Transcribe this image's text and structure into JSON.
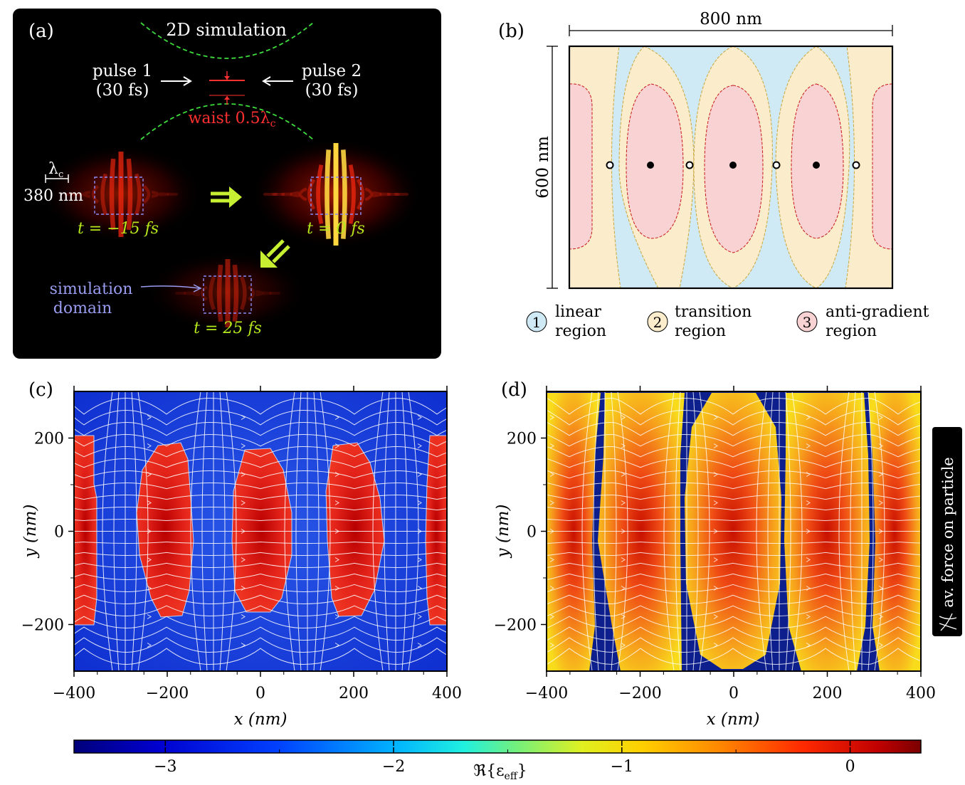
{
  "panels": {
    "a": {
      "tag": "(a)",
      "sim_title": "2D simulation",
      "pulse1": [
        "pulse 1",
        "(30 fs)"
      ],
      "pulse2": [
        "pulse 2",
        "(30 fs)"
      ],
      "waist": "waist 0.5λ",
      "waist_sub": "c",
      "lambda": "λ",
      "lambda_sub": "c",
      "lambda_value": "380 nm",
      "times": [
        "t = −15 fs",
        "t = 0 fs",
        "t = 25 fs"
      ],
      "domain_label": [
        "simulation",
        "domain"
      ]
    },
    "b": {
      "tag": "(b)",
      "width_label": "800 nm",
      "height_label": "600 nm",
      "legend": [
        {
          "num": "1",
          "lines": [
            "linear",
            "region"
          ],
          "color": "#cfe9f5"
        },
        {
          "num": "2",
          "lines": [
            "transition",
            "region"
          ],
          "color": "#fbeccb"
        },
        {
          "num": "3",
          "lines": [
            "anti-gradient",
            "region"
          ],
          "color": "#f9d3d3"
        }
      ]
    },
    "c": {
      "tag": "(c)"
    },
    "d": {
      "tag": "(d)"
    }
  },
  "axes": {
    "x_label": "x (nm)",
    "y_label": "y (nm)",
    "x_ticks": [
      "−400",
      "−200",
      "0",
      "200",
      "400"
    ],
    "y_ticks": [
      "200",
      "0",
      "−200"
    ]
  },
  "force_label": "av. force on particle",
  "colorbar": {
    "label": "ℜ{ε",
    "label_sub": "eff",
    "label_end": "}",
    "ticks": [
      "−3",
      "−2",
      "−1",
      "0"
    ]
  },
  "colors": {
    "jet_blue": "#1a3ad8",
    "jet_red": "#e3231a",
    "dark_blue": "#0d1f8c",
    "orange": "#f49a1f",
    "yellow": "#f7e21c",
    "green_label": "#b6e81c",
    "lavender": "#9a9cf0",
    "waist_red": "#ff3030"
  }
}
